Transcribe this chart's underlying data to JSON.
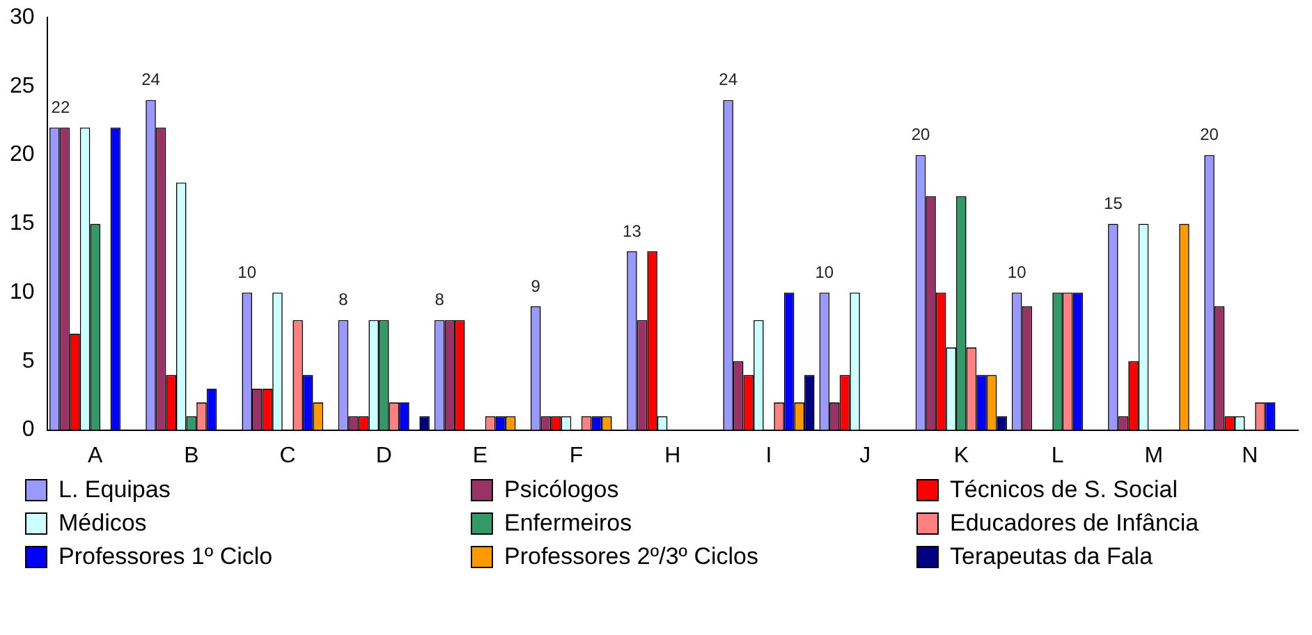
{
  "chart_data": {
    "type": "bar",
    "categories": [
      "A",
      "B",
      "C",
      "D",
      "E",
      "F",
      "H",
      "I",
      "J",
      "K",
      "L",
      "M",
      "N"
    ],
    "ylim": [
      0,
      30
    ],
    "yticks": [
      0,
      5,
      10,
      15,
      20,
      25,
      30
    ],
    "grid": false,
    "legend": "bottom",
    "series": [
      {
        "name": "L. Equipas",
        "color": "#9999ff",
        "values": [
          22,
          24,
          10,
          8,
          8,
          9,
          13,
          24,
          10,
          20,
          10,
          15,
          20
        ],
        "value_labels": [
          "22",
          "24",
          "10",
          "8",
          "8",
          "9",
          "13",
          "24",
          "10",
          "20",
          "10",
          "15",
          "20"
        ]
      },
      {
        "name": "Psicólogos",
        "color": "#993366",
        "values": [
          22,
          22,
          3,
          1,
          8,
          1,
          8,
          5,
          2,
          17,
          9,
          1,
          9
        ]
      },
      {
        "name": "Técnicos de S. Social",
        "color": "#ff0000",
        "values": [
          7,
          4,
          3,
          1,
          8,
          1,
          13,
          4,
          4,
          10,
          0,
          5,
          1
        ]
      },
      {
        "name": "Médicos",
        "color": "#ccffff",
        "values": [
          22,
          18,
          10,
          8,
          0,
          1,
          1,
          8,
          10,
          6,
          0,
          15,
          1
        ]
      },
      {
        "name": "Enfermeiros",
        "color": "#339966",
        "values": [
          15,
          1,
          0,
          8,
          0,
          0,
          0,
          0,
          0,
          17,
          10,
          0,
          0
        ]
      },
      {
        "name": "Educadores de Infância",
        "color": "#ff8080",
        "values": [
          0,
          2,
          8,
          2,
          1,
          1,
          0,
          2,
          0,
          6,
          10,
          0,
          2
        ]
      },
      {
        "name": "Professores 1º Ciclo",
        "color": "#0000ff",
        "values": [
          22,
          3,
          4,
          2,
          1,
          1,
          0,
          10,
          0,
          4,
          10,
          0,
          2
        ]
      },
      {
        "name": "Professores 2º/3º Ciclos",
        "color": "#ff9900",
        "values": [
          0,
          0,
          2,
          0,
          1,
          1,
          0,
          2,
          0,
          4,
          0,
          15,
          0
        ]
      },
      {
        "name": "Terapeutas da Fala",
        "color": "#000080",
        "values": [
          0,
          0,
          0,
          1,
          0,
          0,
          0,
          4,
          0,
          1,
          0,
          0,
          0
        ]
      }
    ]
  }
}
